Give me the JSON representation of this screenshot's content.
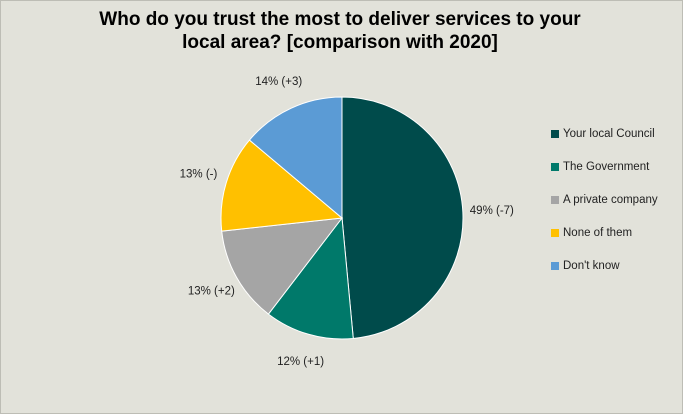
{
  "chart_data": {
    "type": "pie",
    "title": "Who do you trust the most to deliver services to your local area? [comparison with 2020]",
    "categories": [
      "Your local Council",
      "The Government",
      "A private company",
      "None of them",
      "Don't know"
    ],
    "values": [
      49,
      12,
      13,
      13,
      14
    ],
    "value_labels": [
      "49% (-7)",
      "12% (+1)",
      "13% (+2)",
      "13% (-)",
      "14% (+3)"
    ],
    "colors": [
      "#004b4b",
      "#00796a",
      "#a5a5a5",
      "#ffc000",
      "#5b9bd5"
    ],
    "legend": "right"
  }
}
